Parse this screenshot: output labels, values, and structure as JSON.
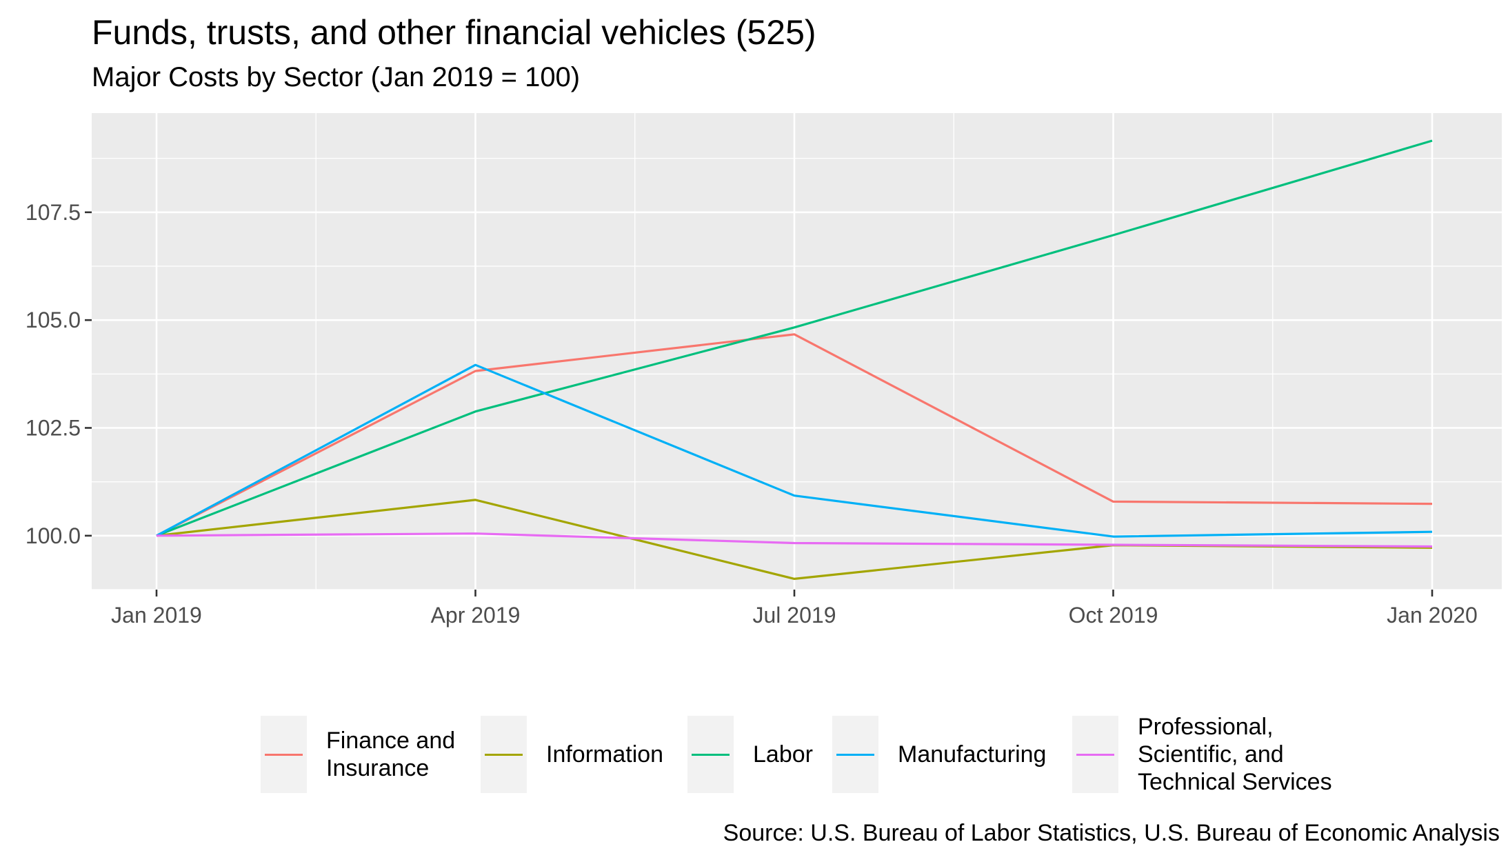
{
  "chart_data": {
    "type": "line",
    "title": "Funds, trusts, and other financial vehicles (525)",
    "subtitle": "Major Costs by Sector (Jan 2019 = 100)",
    "caption": "Source: U.S. Bureau of Labor Statistics, U.S. Bureau of Economic Analysis",
    "xlabel": "",
    "ylabel": "",
    "x": [
      "Jan 2019",
      "Apr 2019",
      "Jul 2019",
      "Oct 2019",
      "Jan 2020"
    ],
    "x_tick_labels": [
      "Jan 2019",
      "Apr 2019",
      "Jul 2019",
      "Oct 2019",
      "Jan 2020"
    ],
    "y_ticks": [
      100.0,
      102.5,
      105.0,
      107.5
    ],
    "y_tick_labels": [
      "100.0",
      "102.5",
      "105.0",
      "107.5"
    ],
    "ylim": [
      98.75,
      109.8
    ],
    "grid": true,
    "legend_position": "bottom",
    "series": [
      {
        "name": "Finance and\nInsurance",
        "color": "#F8766D",
        "values": [
          100.0,
          103.82,
          104.67,
          100.79,
          100.74
        ]
      },
      {
        "name": "Information",
        "color": "#A3A500",
        "values": [
          100.0,
          100.83,
          99.0,
          99.78,
          99.72
        ]
      },
      {
        "name": "Labor",
        "color": "#00BF7D",
        "values": [
          100.0,
          102.88,
          104.83,
          106.97,
          109.16
        ]
      },
      {
        "name": "Manufacturing",
        "color": "#00B0F6",
        "values": [
          100.0,
          103.96,
          100.93,
          99.98,
          100.09
        ]
      },
      {
        "name": "Professional,\nScientific, and\nTechnical Services",
        "color": "#E76BF3",
        "values": [
          100.0,
          100.05,
          99.83,
          99.79,
          99.75
        ]
      }
    ]
  }
}
